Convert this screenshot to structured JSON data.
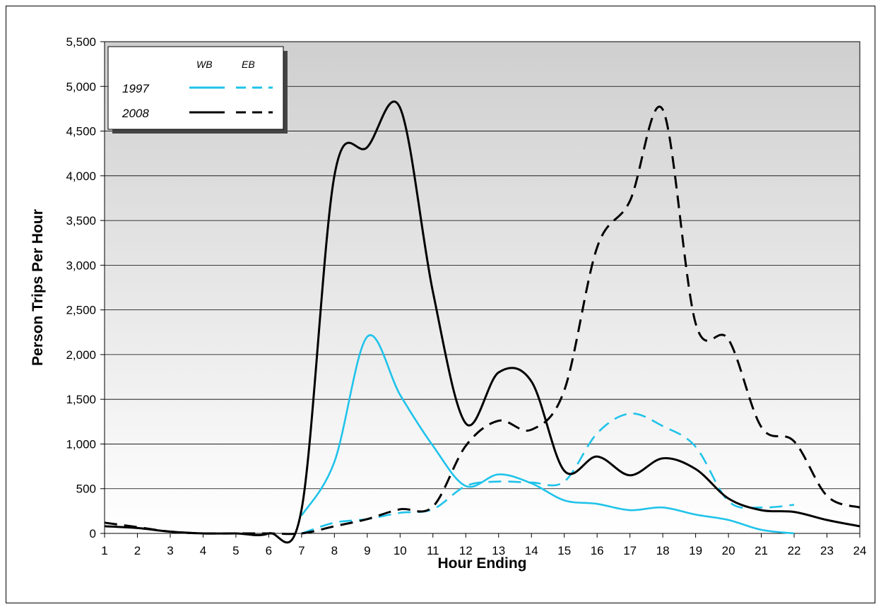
{
  "chart_data": {
    "type": "line",
    "title": "",
    "xlabel": "Hour Ending",
    "ylabel": "Person Trips Per Hour",
    "xlim": [
      1,
      24
    ],
    "ylim": [
      0,
      5500
    ],
    "x_ticks": [
      "1",
      "2",
      "3",
      "4",
      "5",
      "6",
      "7",
      "8",
      "9",
      "10",
      "11",
      "12",
      "13",
      "14",
      "15",
      "16",
      "17",
      "18",
      "19",
      "20",
      "21",
      "22",
      "23",
      "24"
    ],
    "y_ticks": [
      "0",
      "500",
      "1,000",
      "1,500",
      "2,000",
      "2,500",
      "3,000",
      "3,500",
      "4,000",
      "4,500",
      "5,000",
      "5,500"
    ],
    "grid": "horizontal",
    "legend_position": "top-left",
    "legend": {
      "column_headers": [
        "WB",
        "EB"
      ],
      "row_labels": [
        "1997",
        "2008"
      ]
    },
    "series": [
      {
        "name": "1997 WB",
        "color": "#1fc3ea",
        "style": "solid",
        "points": [
          [
            7,
            200
          ],
          [
            8,
            800
          ],
          [
            9,
            2200
          ],
          [
            10,
            1550
          ],
          [
            11,
            980
          ],
          [
            12,
            530
          ],
          [
            13,
            660
          ],
          [
            14,
            560
          ],
          [
            15,
            370
          ],
          [
            16,
            330
          ],
          [
            17,
            260
          ],
          [
            18,
            290
          ],
          [
            19,
            210
          ],
          [
            20,
            150
          ],
          [
            21,
            40
          ],
          [
            22,
            0
          ]
        ]
      },
      {
        "name": "1997 EB",
        "color": "#1fc3ea",
        "style": "dashed",
        "points": [
          [
            7,
            0
          ],
          [
            8,
            120
          ],
          [
            9,
            160
          ],
          [
            10,
            230
          ],
          [
            11,
            270
          ],
          [
            12,
            530
          ],
          [
            13,
            580
          ],
          [
            14,
            570
          ],
          [
            15,
            580
          ],
          [
            16,
            1120
          ],
          [
            17,
            1340
          ],
          [
            18,
            1200
          ],
          [
            19,
            970
          ],
          [
            20,
            360
          ],
          [
            21,
            290
          ],
          [
            22,
            320
          ]
        ]
      },
      {
        "name": "2008 WB",
        "color": "#000000",
        "style": "solid",
        "points": [
          [
            1,
            80
          ],
          [
            2,
            60
          ],
          [
            3,
            20
          ],
          [
            4,
            0
          ],
          [
            5,
            0
          ],
          [
            6,
            0
          ],
          [
            7,
            270
          ],
          [
            8,
            4000
          ],
          [
            9,
            4320
          ],
          [
            10,
            4760
          ],
          [
            11,
            2700
          ],
          [
            12,
            1230
          ],
          [
            13,
            1800
          ],
          [
            14,
            1700
          ],
          [
            15,
            700
          ],
          [
            16,
            860
          ],
          [
            17,
            650
          ],
          [
            18,
            840
          ],
          [
            19,
            720
          ],
          [
            20,
            390
          ],
          [
            21,
            260
          ],
          [
            22,
            240
          ],
          [
            23,
            150
          ],
          [
            24,
            80
          ]
        ]
      },
      {
        "name": "2008 EB",
        "color": "#000000",
        "style": "dashed",
        "points": [
          [
            1,
            120
          ],
          [
            2,
            70
          ],
          [
            3,
            20
          ],
          [
            4,
            0
          ],
          [
            5,
            0
          ],
          [
            6,
            0
          ],
          [
            7,
            0
          ],
          [
            8,
            80
          ],
          [
            9,
            160
          ],
          [
            10,
            270
          ],
          [
            11,
            300
          ],
          [
            12,
            980
          ],
          [
            13,
            1260
          ],
          [
            14,
            1160
          ],
          [
            15,
            1600
          ],
          [
            16,
            3200
          ],
          [
            17,
            3720
          ],
          [
            18,
            4740
          ],
          [
            19,
            2350
          ],
          [
            20,
            2170
          ],
          [
            21,
            1190
          ],
          [
            22,
            1030
          ],
          [
            23,
            420
          ],
          [
            24,
            290
          ]
        ]
      }
    ]
  }
}
